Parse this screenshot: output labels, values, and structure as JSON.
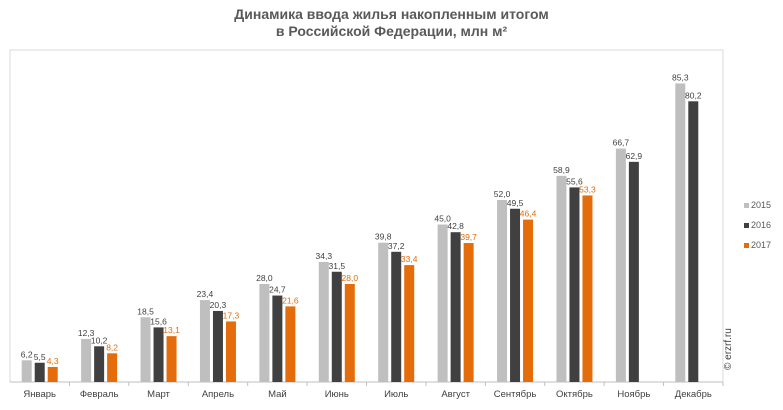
{
  "chart_data": {
    "type": "bar",
    "title_line1": "Динамика ввода жилья накопленным итогом",
    "title_line2": "в Российской Федерации, млн м²",
    "categories": [
      "Январь",
      "Февраль",
      "Март",
      "Апрель",
      "Май",
      "Июнь",
      "Июль",
      "Август",
      "Сентябрь",
      "Октябрь",
      "Ноябрь",
      "Декабрь"
    ],
    "series": [
      {
        "name": "2015",
        "color": "#bfbfbf",
        "label_color": "#404040",
        "values": [
          6.2,
          12.3,
          18.5,
          23.4,
          28.0,
          34.3,
          39.8,
          45.0,
          52.0,
          58.9,
          66.7,
          85.3
        ]
      },
      {
        "name": "2016",
        "color": "#404040",
        "label_color": "#404040",
        "values": [
          5.5,
          10.2,
          15.6,
          20.3,
          24.7,
          31.5,
          37.2,
          42.8,
          49.5,
          55.6,
          62.9,
          80.2
        ]
      },
      {
        "name": "2017",
        "color": "#e46c0a",
        "label_color": "#e46c0a",
        "values": [
          4.3,
          8.2,
          13.1,
          17.3,
          21.6,
          28.0,
          33.4,
          39.7,
          46.4,
          53.3,
          null,
          null
        ]
      }
    ],
    "ylim": [
      0,
      100
    ],
    "grid": false,
    "legend": "right"
  },
  "credit": "© erzrf.ru"
}
